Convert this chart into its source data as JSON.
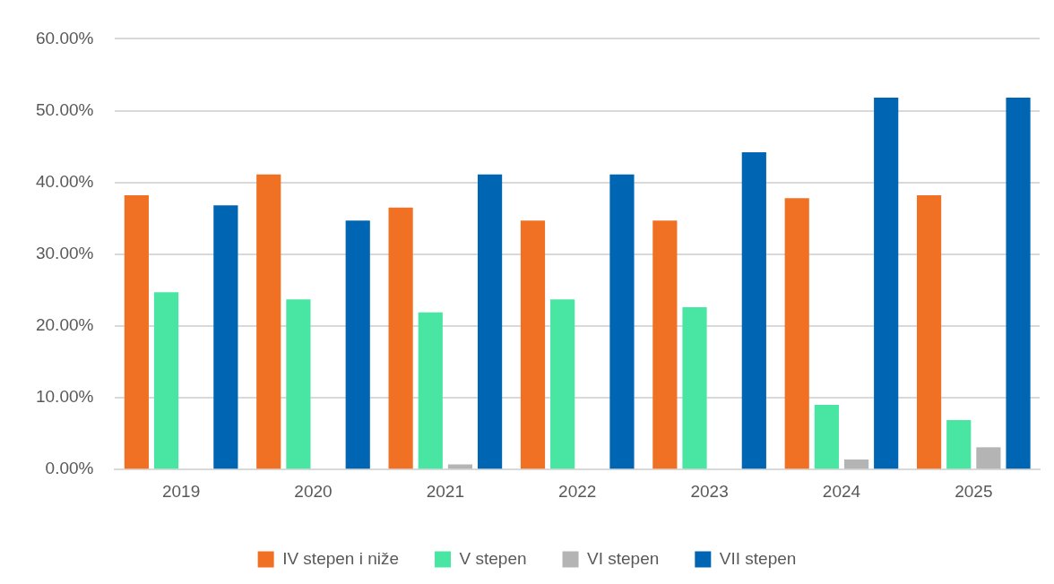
{
  "chart_data": {
    "type": "bar",
    "categories": [
      "2019",
      "2020",
      "2021",
      "2022",
      "2023",
      "2024",
      "2025"
    ],
    "series": [
      {
        "name": "IV stepen i niže",
        "color": "#f07123",
        "values": [
          38.2,
          41.1,
          36.5,
          34.7,
          34.7,
          37.8,
          38.2
        ]
      },
      {
        "name": "V stepen",
        "color": "#48e6a2",
        "values": [
          24.7,
          23.7,
          21.9,
          23.7,
          22.6,
          9.0,
          6.9
        ]
      },
      {
        "name": "VI stepen",
        "color": "#b4b4b4",
        "values": [
          0,
          0,
          0.7,
          0,
          0,
          1.4,
          3.1
        ]
      },
      {
        "name": "VII stepen",
        "color": "#0066b3",
        "values": [
          36.8,
          34.7,
          41.1,
          41.1,
          44.2,
          51.8,
          51.8
        ]
      }
    ],
    "ylim": [
      0,
      60
    ],
    "yticks": [
      {
        "value": 0,
        "label": "0.00%"
      },
      {
        "value": 10,
        "label": "10.00%"
      },
      {
        "value": 20,
        "label": "20.00%"
      },
      {
        "value": 30,
        "label": "30.00%"
      },
      {
        "value": 40,
        "label": "40.00%"
      },
      {
        "value": 50,
        "label": "50.00%"
      },
      {
        "value": 60,
        "label": "60.00%"
      }
    ],
    "grid": "y",
    "legend": "bottom"
  }
}
